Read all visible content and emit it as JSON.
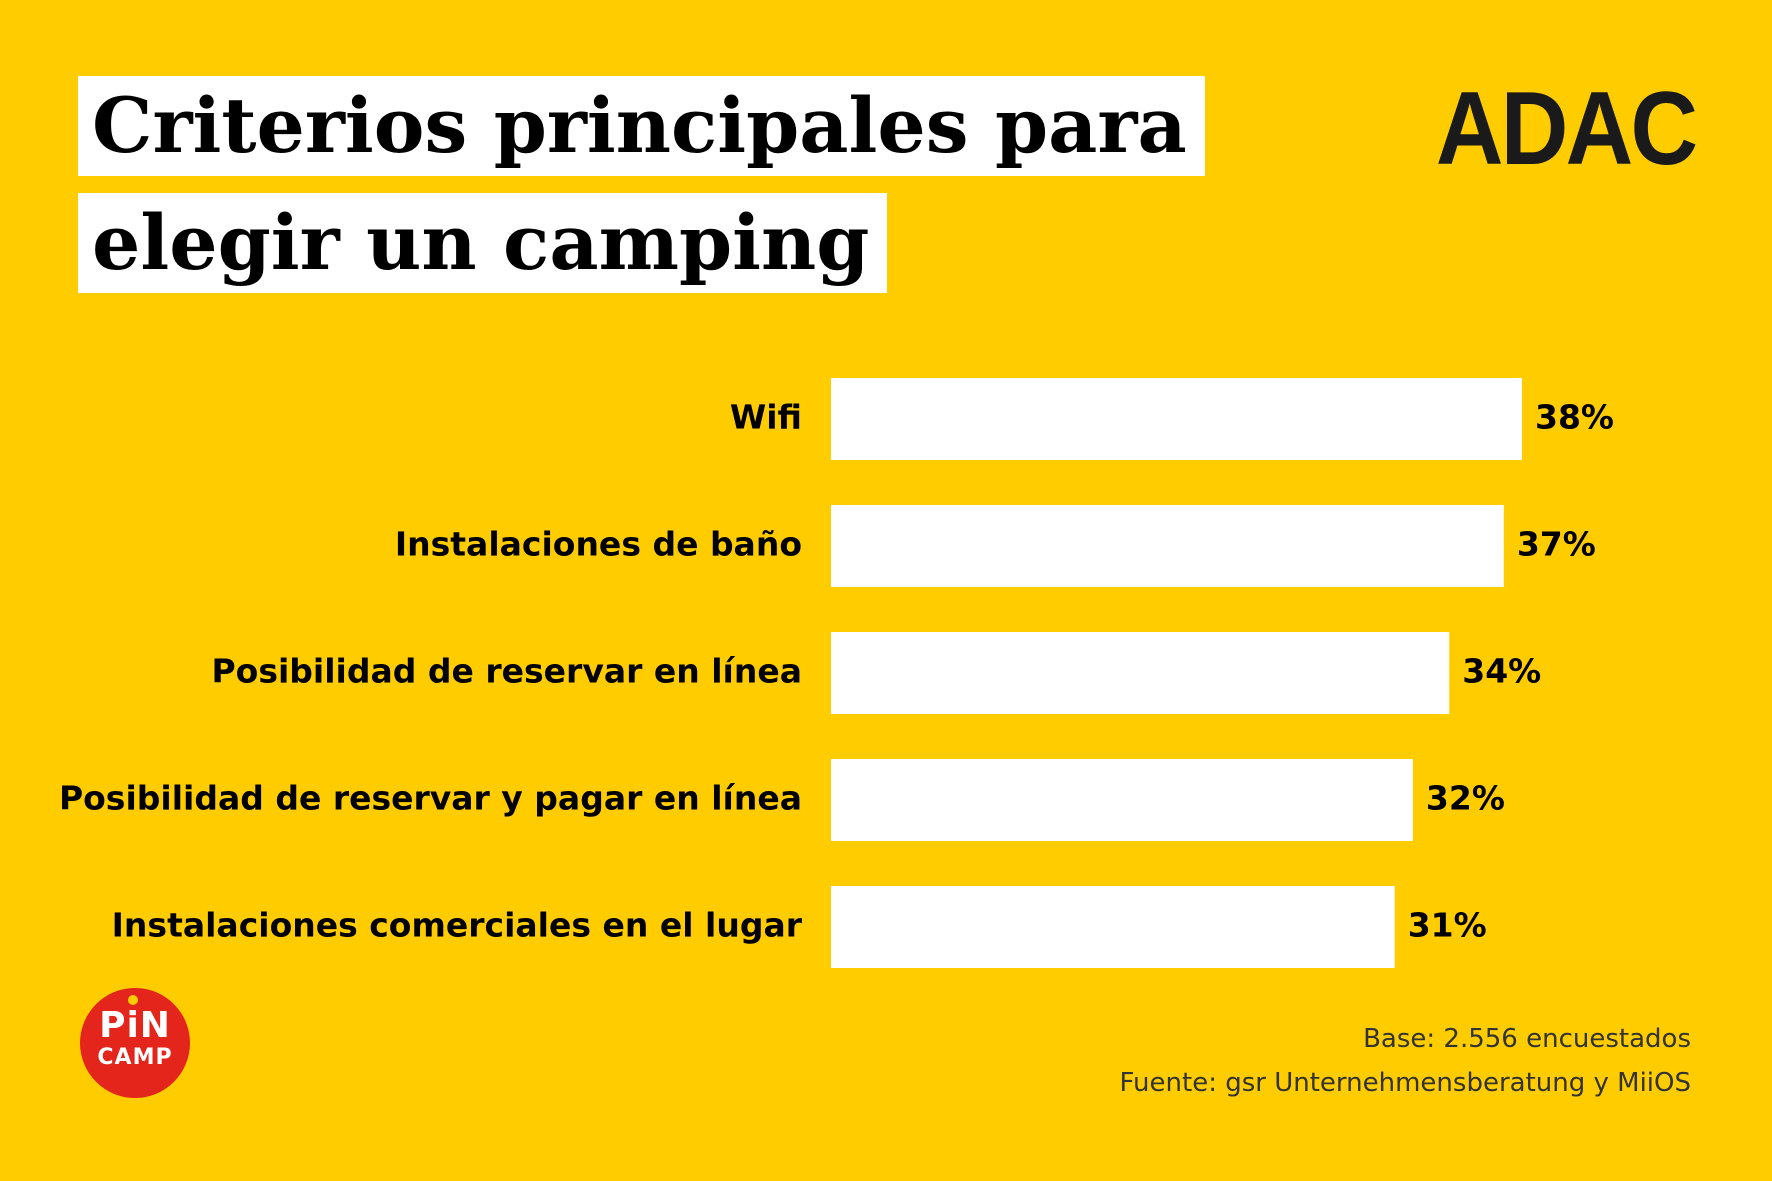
{
  "title": {
    "line1": "Criterios principales para",
    "line2": "elegir un camping"
  },
  "brand": "ADAC",
  "logo": {
    "top": "PiN",
    "bottom": "CAMP"
  },
  "footnotes": {
    "base": "Base: 2.556 encuestados",
    "source": "Fuente: gsr Unternehmensberatung y MiiOS"
  },
  "colors": {
    "background": "#FFCC00",
    "bar": "#FFFFFF",
    "text": "#000000",
    "logo": "#E3251B"
  },
  "chart_data": {
    "type": "bar",
    "orientation": "horizontal",
    "categories": [
      "Wifi",
      "Instalaciones de baño",
      "Posibilidad de reservar en línea",
      "Posibilidad de reservar y pagar en línea",
      "Instalaciones comerciales en el lugar"
    ],
    "values": [
      38,
      37,
      34,
      32,
      31
    ],
    "value_labels": [
      "38%",
      "37%",
      "34%",
      "32%",
      "31%"
    ],
    "unit": "%",
    "xlim": [
      0,
      38
    ],
    "grid": false,
    "legend": "none"
  }
}
